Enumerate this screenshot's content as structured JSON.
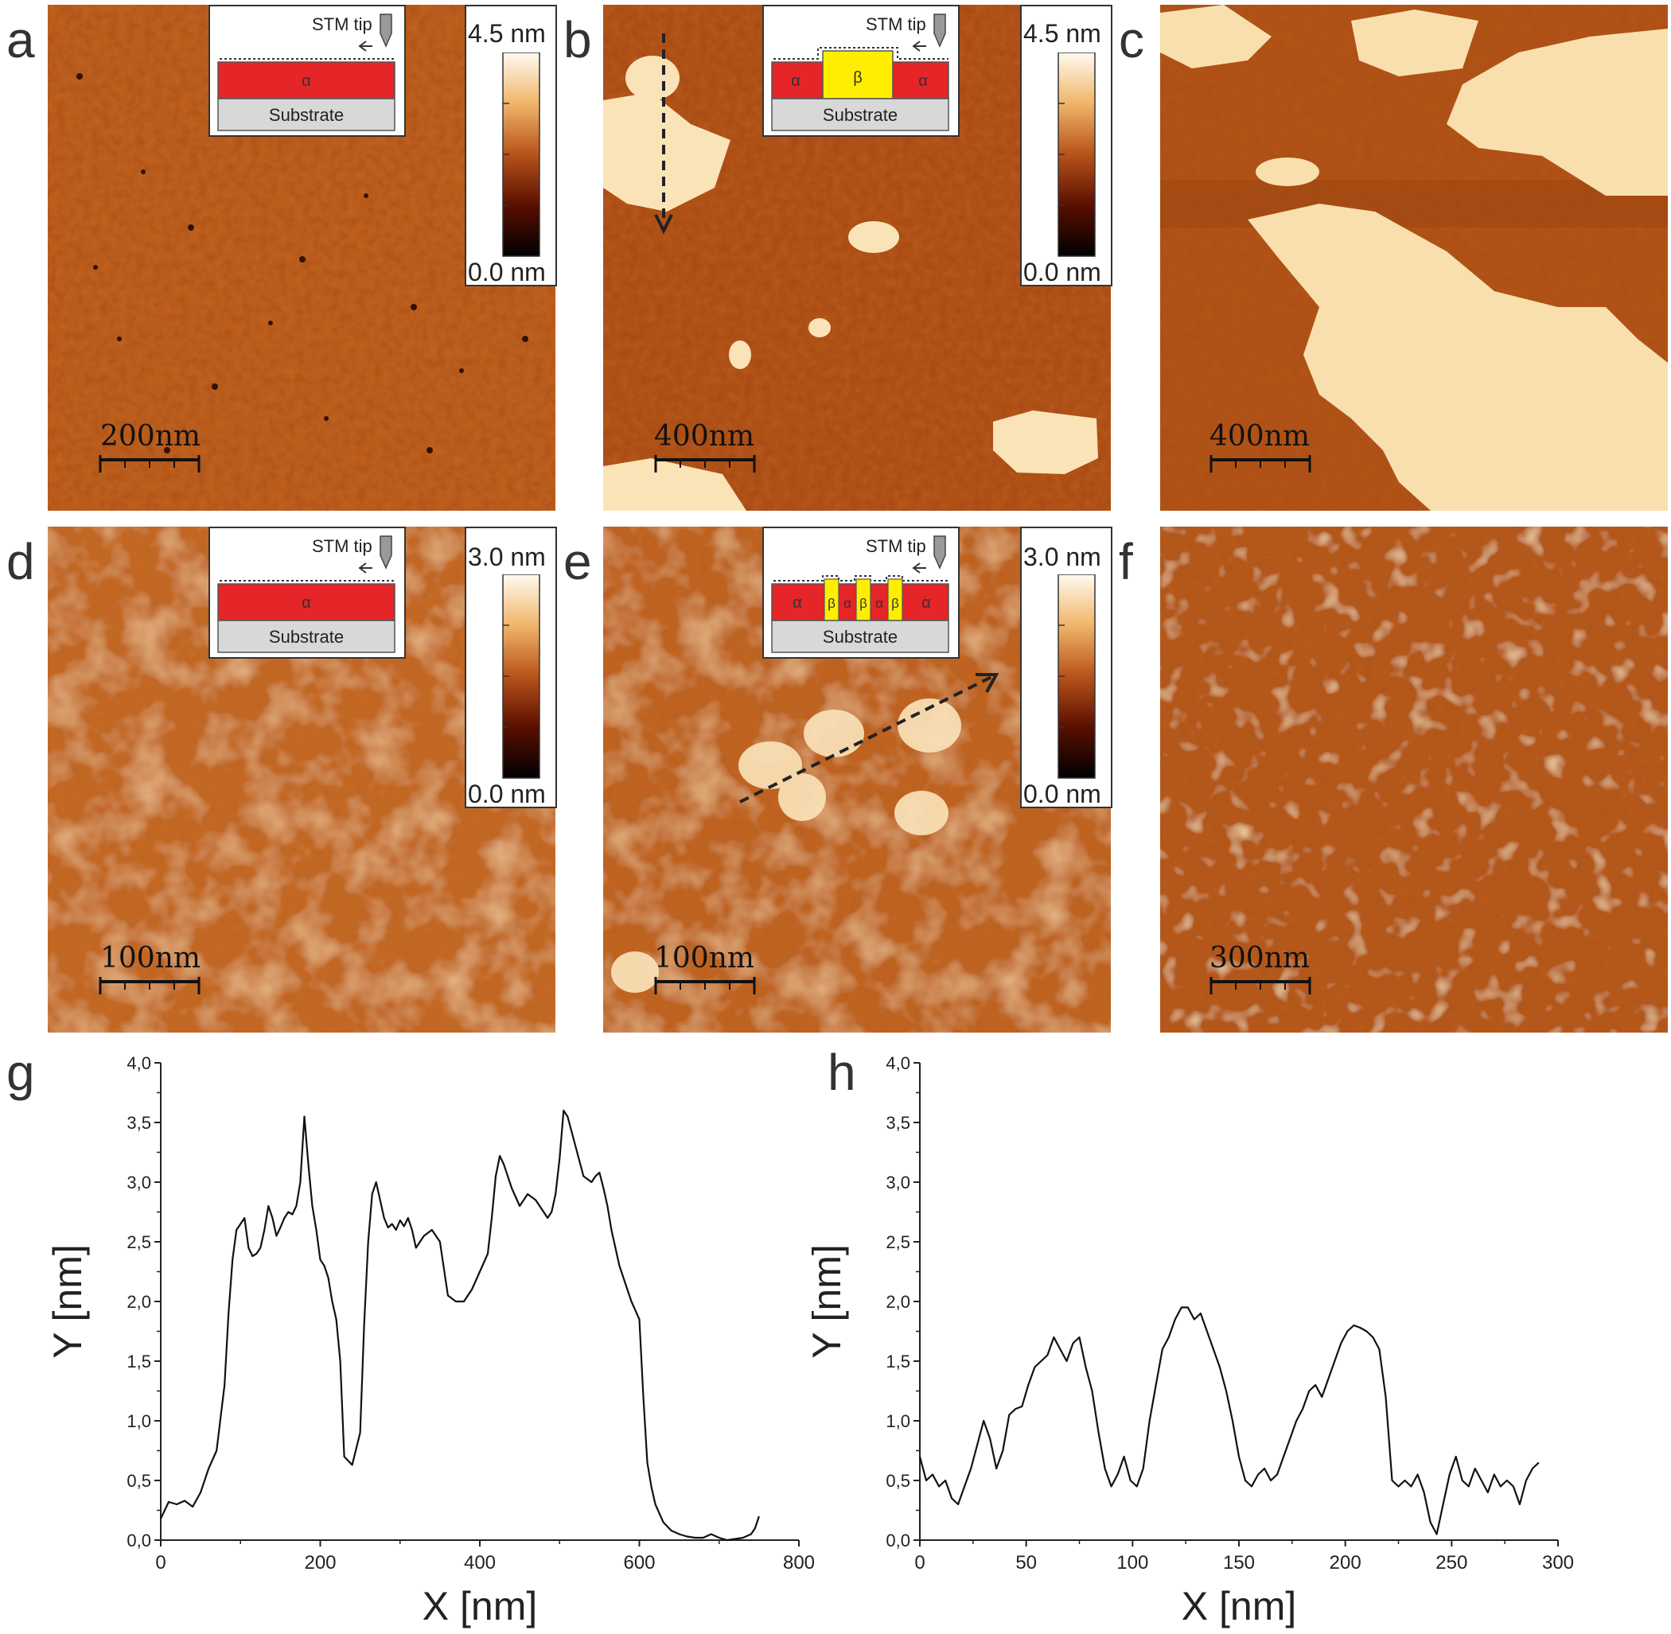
{
  "panels": {
    "a": {
      "letter": "a",
      "scalebar": "200nm",
      "colorbar_max": "4.5 nm",
      "colorbar_min": "0.0 nm",
      "inset_tip": "STM tip",
      "inset_layer": "α",
      "inset_substrate": "Substrate"
    },
    "b": {
      "letter": "b",
      "scalebar": "400nm",
      "colorbar_max": "4.5 nm",
      "colorbar_min": "0.0 nm",
      "inset_tip": "STM tip",
      "inset_layer_left": "α",
      "inset_layer_mid": "β",
      "inset_layer_right": "α",
      "inset_substrate": "Substrate"
    },
    "c": {
      "letter": "c",
      "scalebar": "400nm"
    },
    "d": {
      "letter": "d",
      "scalebar": "100nm",
      "colorbar_max": "3.0 nm",
      "colorbar_min": "0.0 nm",
      "inset_tip": "STM tip",
      "inset_layer": "α",
      "inset_substrate": "Substrate"
    },
    "e": {
      "letter": "e",
      "scalebar": "100nm",
      "colorbar_max": "3.0 nm",
      "colorbar_min": "0.0 nm",
      "inset_tip": "STM tip",
      "inset_segments": [
        "α",
        "β",
        "α",
        "β",
        "α",
        "β",
        "α"
      ],
      "inset_substrate": "Substrate"
    },
    "f": {
      "letter": "f",
      "scalebar": "300nm"
    },
    "g": {
      "letter": "g"
    },
    "h": {
      "letter": "h"
    }
  },
  "colors": {
    "low": "#1a0000",
    "mid": "#b8531a",
    "high": "#fff8e6",
    "alpha_layer": "#e52528",
    "beta_layer": "#ffee00",
    "substrate": "#d8d8d8"
  },
  "chart_data": [
    {
      "type": "line",
      "xlabel": "X [nm]",
      "ylabel": "Y [nm]",
      "xlim": [
        0,
        800
      ],
      "ylim": [
        0,
        4.0
      ],
      "xticks": [
        "0",
        "200",
        "400",
        "600",
        "800"
      ],
      "yticks": [
        "0,0",
        "0,5",
        "1,0",
        "1,5",
        "2,0",
        "2,5",
        "3,0",
        "3,5",
        "4,0"
      ],
      "x": [
        0,
        10,
        20,
        30,
        40,
        50,
        60,
        70,
        80,
        85,
        90,
        95,
        100,
        105,
        110,
        115,
        120,
        125,
        130,
        135,
        140,
        145,
        150,
        155,
        160,
        165,
        170,
        175,
        180,
        185,
        190,
        195,
        200,
        205,
        210,
        215,
        220,
        225,
        230,
        240,
        250,
        255,
        260,
        265,
        270,
        275,
        280,
        285,
        290,
        295,
        300,
        305,
        310,
        315,
        320,
        330,
        340,
        350,
        360,
        370,
        380,
        390,
        400,
        410,
        415,
        420,
        425,
        430,
        440,
        450,
        460,
        470,
        475,
        480,
        485,
        490,
        495,
        500,
        505,
        510,
        520,
        530,
        540,
        545,
        550,
        555,
        560,
        565,
        570,
        575,
        580,
        590,
        600,
        605,
        610,
        615,
        620,
        630,
        640,
        650,
        660,
        670,
        680,
        690,
        700,
        710,
        720,
        730,
        740,
        745,
        750
      ],
      "y": [
        0.18,
        0.32,
        0.3,
        0.33,
        0.28,
        0.4,
        0.6,
        0.75,
        1.3,
        1.9,
        2.35,
        2.6,
        2.65,
        2.7,
        2.45,
        2.38,
        2.4,
        2.45,
        2.6,
        2.8,
        2.7,
        2.55,
        2.62,
        2.7,
        2.75,
        2.73,
        2.8,
        3.0,
        3.55,
        3.15,
        2.8,
        2.6,
        2.35,
        2.3,
        2.2,
        2.0,
        1.85,
        1.5,
        0.7,
        0.63,
        0.9,
        1.8,
        2.5,
        2.9,
        3.0,
        2.85,
        2.7,
        2.62,
        2.65,
        2.6,
        2.68,
        2.63,
        2.7,
        2.6,
        2.45,
        2.55,
        2.6,
        2.5,
        2.05,
        2.0,
        2.0,
        2.1,
        2.25,
        2.4,
        2.7,
        3.05,
        3.22,
        3.15,
        2.95,
        2.8,
        2.9,
        2.85,
        2.8,
        2.75,
        2.7,
        2.75,
        2.9,
        3.2,
        3.6,
        3.55,
        3.3,
        3.05,
        3.0,
        3.05,
        3.08,
        2.95,
        2.8,
        2.6,
        2.45,
        2.3,
        2.2,
        2.0,
        1.85,
        1.2,
        0.65,
        0.45,
        0.3,
        0.15,
        0.08,
        0.05,
        0.03,
        0.02,
        0.02,
        0.05,
        0.02,
        0.0,
        0.01,
        0.02,
        0.05,
        0.1,
        0.2
      ]
    },
    {
      "type": "line",
      "xlabel": "X [nm]",
      "ylabel": "Y [nm]",
      "xlim": [
        0,
        300
      ],
      "ylim": [
        0,
        4.0
      ],
      "xticks": [
        "0",
        "50",
        "100",
        "150",
        "200",
        "250",
        "300"
      ],
      "yticks": [
        "0,0",
        "0,5",
        "1,0",
        "1,5",
        "2,0",
        "2,5",
        "3,0",
        "3,5",
        "4,0"
      ],
      "x": [
        0,
        3,
        6,
        9,
        12,
        15,
        18,
        21,
        24,
        27,
        30,
        33,
        36,
        39,
        42,
        45,
        48,
        51,
        54,
        57,
        60,
        63,
        66,
        69,
        72,
        75,
        78,
        81,
        84,
        87,
        90,
        93,
        96,
        99,
        102,
        105,
        108,
        111,
        114,
        117,
        120,
        123,
        126,
        129,
        132,
        135,
        138,
        141,
        144,
        147,
        150,
        153,
        156,
        159,
        162,
        165,
        168,
        171,
        174,
        177,
        180,
        183,
        186,
        189,
        192,
        195,
        198,
        201,
        204,
        207,
        210,
        213,
        216,
        219,
        222,
        225,
        228,
        231,
        234,
        237,
        240,
        243,
        246,
        249,
        252,
        255,
        258,
        261,
        264,
        267,
        270,
        273,
        276,
        279,
        282,
        285,
        288,
        291
      ],
      "y": [
        0.7,
        0.5,
        0.55,
        0.45,
        0.5,
        0.35,
        0.3,
        0.45,
        0.6,
        0.8,
        1.0,
        0.85,
        0.6,
        0.75,
        1.05,
        1.1,
        1.12,
        1.3,
        1.45,
        1.5,
        1.55,
        1.7,
        1.6,
        1.5,
        1.65,
        1.7,
        1.45,
        1.25,
        0.9,
        0.6,
        0.45,
        0.55,
        0.7,
        0.5,
        0.45,
        0.6,
        1.0,
        1.3,
        1.6,
        1.7,
        1.85,
        1.95,
        1.95,
        1.85,
        1.9,
        1.75,
        1.6,
        1.45,
        1.25,
        1.0,
        0.7,
        0.5,
        0.45,
        0.55,
        0.6,
        0.5,
        0.55,
        0.7,
        0.85,
        1.0,
        1.1,
        1.25,
        1.3,
        1.2,
        1.35,
        1.5,
        1.65,
        1.75,
        1.8,
        1.78,
        1.75,
        1.7,
        1.6,
        1.2,
        0.5,
        0.45,
        0.5,
        0.45,
        0.55,
        0.4,
        0.15,
        0.05,
        0.3,
        0.55,
        0.7,
        0.5,
        0.45,
        0.6,
        0.5,
        0.4,
        0.55,
        0.45,
        0.5,
        0.45,
        0.3,
        0.5,
        0.6,
        0.65
      ]
    }
  ]
}
